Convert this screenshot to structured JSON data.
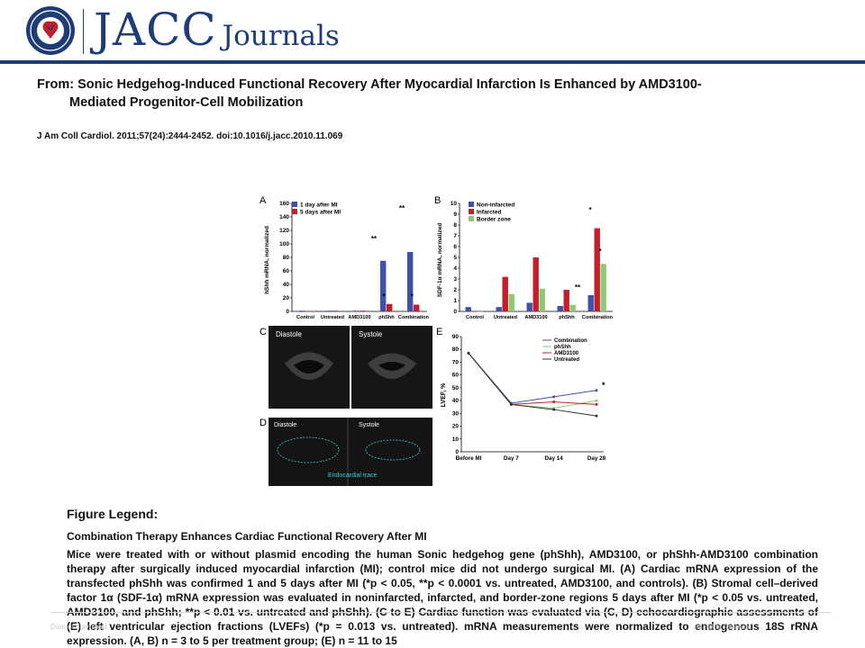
{
  "header": {
    "brand_main": "JACC",
    "brand_sub": "Journals",
    "seal_icon": "acc-seal-icon"
  },
  "article": {
    "from_label": "From:",
    "title_line1": "Sonic Hedgehog-Induced Functional Recovery After Myocardial Infarction Is Enhanced by AMD3100-",
    "title_line2": "Mediated Progenitor-Cell Mobilization",
    "citation": "J Am Coll Cardiol. 2011;57(24):2444-2452. doi:10.1016/j.jacc.2010.11.069"
  },
  "figure": {
    "panel_a": {
      "letter": "A",
      "ylabel": "hShh mRNA, normalized",
      "legend": [
        "1 day after MI",
        "5 days after MI"
      ],
      "categories": [
        "Control",
        "Untreated",
        "AMD3100",
        "phShh",
        "Combination"
      ],
      "yticks": [
        "0",
        "20",
        "40",
        "60",
        "80",
        "100",
        "120",
        "140",
        "160"
      ],
      "annotations": [
        "**",
        "*",
        "**",
        "*"
      ]
    },
    "panel_b": {
      "letter": "B",
      "ylabel": "SDF-1α mRNA, normalized",
      "legend": [
        "Non-infarcted",
        "Infarcted",
        "Border zone"
      ],
      "categories": [
        "Control",
        "Untreated",
        "AMD3100",
        "phShh",
        "Combination"
      ],
      "yticks": [
        "0",
        "1",
        "2",
        "3",
        "4",
        "5",
        "6",
        "7",
        "8",
        "9",
        "10"
      ],
      "annotations": [
        "*",
        "*",
        "**"
      ]
    },
    "panel_c": {
      "letter": "C",
      "labels": [
        "Diastole",
        "Systole"
      ]
    },
    "panel_d": {
      "letter": "D",
      "labels": [
        "Diastole",
        "Systole"
      ],
      "trace_label": "Endocardial trace"
    },
    "panel_e": {
      "letter": "E",
      "ylabel": "LVEF, %",
      "legend": [
        "Combination",
        "phShh",
        "AMD3100",
        "Untreated"
      ],
      "categories": [
        "Before MI",
        "Day 7",
        "Day 14",
        "Day 28"
      ],
      "yticks": [
        "0",
        "10",
        "20",
        "30",
        "40",
        "50",
        "60",
        "70",
        "80",
        "90"
      ],
      "annotation": "*"
    }
  },
  "chart_data": [
    {
      "type": "bar",
      "panel": "A",
      "ylabel": "hShh mRNA, normalized",
      "ylim": [
        0,
        160
      ],
      "categories": [
        "Control",
        "Untreated",
        "AMD3100",
        "phShh",
        "Combination"
      ],
      "series": [
        {
          "name": "1 day after MI",
          "values": [
            1,
            1,
            1,
            75,
            88
          ]
        },
        {
          "name": "5 days after MI",
          "values": [
            0.5,
            1,
            1,
            11,
            10
          ]
        }
      ],
      "colors": [
        "#3f51a8",
        "#c21f2d"
      ]
    },
    {
      "type": "bar",
      "panel": "B",
      "ylabel": "SDF-1α mRNA, normalized",
      "ylim": [
        0,
        10
      ],
      "categories": [
        "Control",
        "Untreated",
        "AMD3100",
        "phShh",
        "Combination"
      ],
      "series": [
        {
          "name": "Non-infarcted",
          "values": [
            0.4,
            0.4,
            0.8,
            0.5,
            1.5
          ]
        },
        {
          "name": "Infarcted",
          "values": [
            0,
            3.2,
            5.0,
            2.0,
            7.7
          ]
        },
        {
          "name": "Border zone",
          "values": [
            0,
            1.6,
            2.1,
            0.6,
            4.4
          ]
        }
      ],
      "colors": [
        "#3f51a8",
        "#c21f2d",
        "#8cc972"
      ]
    },
    {
      "type": "line",
      "panel": "E",
      "ylabel": "LVEF, %",
      "ylim": [
        0,
        90
      ],
      "categories": [
        "Before MI",
        "Day 7",
        "Day 14",
        "Day 28"
      ],
      "series": [
        {
          "name": "Combination",
          "values": [
            77,
            38,
            43,
            48
          ],
          "color": "#3f51a8"
        },
        {
          "name": "phShh",
          "values": [
            77,
            37,
            34,
            40
          ],
          "color": "#8cc972"
        },
        {
          "name": "AMD3100",
          "values": [
            77,
            37,
            39,
            37
          ],
          "color": "#c21f2d"
        },
        {
          "name": "Untreated",
          "values": [
            77,
            37,
            33,
            28
          ],
          "color": "#333333"
        }
      ]
    }
  ],
  "legend": {
    "heading": "Figure Legend:",
    "subtitle": "Combination Therapy Enhances Cardiac Functional Recovery After MI",
    "body": "Mice were treated with or without plasmid encoding the human Sonic hedgehog gene (phShh), AMD3100, or phShh-AMD3100 combination therapy after surgically induced myocardial infarction (MI); control mice did not undergo surgical MI. (A) Cardiac mRNA expression of the transfected phShh was confirmed 1 and 5 days after MI (*p < 0.05, **p < 0.0001 vs. untreated, AMD3100, and controls). (B) Stromal cell–derived factor 1α (SDF-1α) mRNA expression was evaluated in noninfarcted, infarcted, and border-zone regions 5 days after MI (*p < 0.05 vs. untreated, AMD3100, and phShh; **p < 0.01 vs. untreated and phShh). (C to E) Cardiac function was evaluated via (C, D) echocardiographic assessments of (E) left ventricular ejection fractions (LVEFs) (*p = 0.013 vs. untreated). mRNA measurements were normalized to endogenous 18S rRNA expression. (A, B) n = 3 to 5 per treatment group; (E) n = 11 to 15"
  },
  "footer": {
    "left": "Date of download: ",
    "right": "All rights reserved."
  }
}
